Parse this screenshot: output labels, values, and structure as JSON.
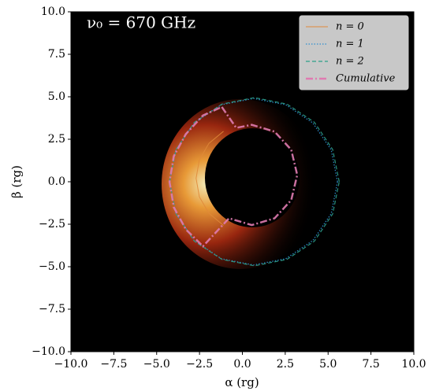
{
  "chart_data": {
    "type": "line",
    "annotation": "ν₀ = 670 GHz",
    "xlabel": "α (rg)",
    "ylabel": "β (rg)",
    "xlim": [
      -10,
      10
    ],
    "ylim": [
      -10,
      10
    ],
    "xticks": [
      {
        "value": -10,
        "label": "−10.0"
      },
      {
        "value": -7.5,
        "label": "−7.5"
      },
      {
        "value": -5,
        "label": "−5.0"
      },
      {
        "value": -2.5,
        "label": "−2.5"
      },
      {
        "value": 0,
        "label": "0.0"
      },
      {
        "value": 2.5,
        "label": "2.5"
      },
      {
        "value": 5,
        "label": "5.0"
      },
      {
        "value": 7.5,
        "label": "7.5"
      },
      {
        "value": 10,
        "label": "10.0"
      }
    ],
    "yticks": [
      {
        "value": -10,
        "label": "−10.0"
      },
      {
        "value": -7.5,
        "label": "−7.5"
      },
      {
        "value": -5,
        "label": "−5.0"
      },
      {
        "value": -2.5,
        "label": "−2.5"
      },
      {
        "value": 0,
        "label": "0.0"
      },
      {
        "value": 2.5,
        "label": "2.5"
      },
      {
        "value": 5,
        "label": "5.0"
      },
      {
        "value": 7.5,
        "label": "7.5"
      },
      {
        "value": 10,
        "label": "10.0"
      }
    ],
    "legend": "upper right",
    "series": [
      {
        "name": "n = 0",
        "color": "#e0893a",
        "linestyle": "solid",
        "x": [
          -1.1,
          -1.95,
          -2.51,
          -2.7,
          -2.51,
          -1.95,
          -1.1
        ],
        "values": [
          2.97,
          2.26,
          1.29,
          0.2,
          -0.89,
          -1.86,
          -2.57
        ]
      },
      {
        "name": "n = 1",
        "color": "#2f8fd0",
        "linestyle": "dotted",
        "x": [
          5.55,
          5.18,
          4.11,
          2.53,
          0.65,
          -1.23,
          -2.81,
          -3.88,
          -4.25,
          -3.88,
          -2.81,
          -1.23,
          0.65,
          2.53,
          4.11,
          5.18,
          5.55
        ],
        "values": [
          0,
          1.88,
          3.46,
          4.53,
          4.9,
          4.53,
          3.46,
          1.88,
          0,
          -1.88,
          -3.46,
          -4.53,
          -4.9,
          -4.53,
          -3.46,
          -1.88,
          0
        ]
      },
      {
        "name": "n = 2",
        "color": "#2ca089",
        "linestyle": "dashed",
        "x": [
          5.65,
          5.27,
          4.2,
          2.6,
          0.7,
          -1.19,
          -2.8,
          -3.87,
          -4.25,
          -3.87,
          -2.8,
          -1.19,
          0.7,
          2.6,
          4.2,
          5.27,
          5.65
        ],
        "values": [
          0,
          1.89,
          3.5,
          4.57,
          4.95,
          4.57,
          3.5,
          1.89,
          0,
          -1.89,
          -3.5,
          -4.57,
          -4.95,
          -4.57,
          -3.5,
          -1.89,
          0
        ]
      },
      {
        "name": "Cumulative",
        "color": "#e07bb0",
        "linestyle": "dashdot",
        "x": [
          -1.2,
          -0.36,
          0.55,
          1.88,
          2.85,
          3.2,
          2.85,
          1.88,
          0.55,
          -0.78,
          -2.3,
          -3.3,
          -4.0,
          -4.25,
          -4.0,
          -3.3,
          -2.3,
          -1.2
        ],
        "values": [
          4.4,
          3.17,
          3.35,
          2.95,
          1.88,
          0.4,
          -1.08,
          -2.15,
          -2.55,
          -2.15,
          -3.8,
          -2.8,
          -1.5,
          0,
          1.5,
          2.8,
          3.9,
          4.4
        ]
      }
    ]
  }
}
